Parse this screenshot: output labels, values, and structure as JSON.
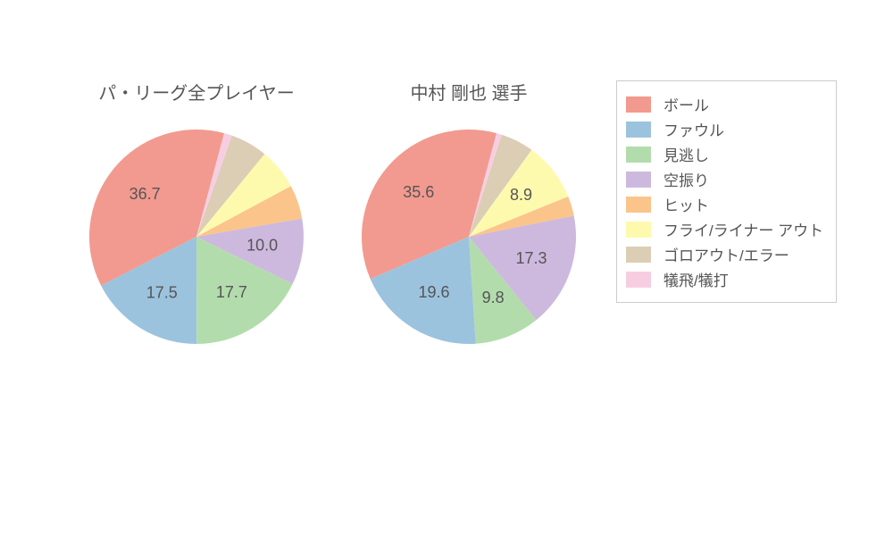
{
  "palette": {
    "ball": "#f29a8f",
    "foul": "#9cc3dd",
    "look": "#b3dcad",
    "swing": "#cdb9de",
    "hit": "#fbc48b",
    "fly_out": "#fdfaae",
    "ground_out": "#dccdb5",
    "sac": "#f7cee1"
  },
  "legend": [
    {
      "key": "ball",
      "label": "ボール"
    },
    {
      "key": "foul",
      "label": "ファウル"
    },
    {
      "key": "look",
      "label": "見逃し"
    },
    {
      "key": "swing",
      "label": "空振り"
    },
    {
      "key": "hit",
      "label": "ヒット"
    },
    {
      "key": "fly_out",
      "label": "フライ/ライナー アウト"
    },
    {
      "key": "ground_out",
      "label": "ゴロアウト/エラー"
    },
    {
      "key": "sac",
      "label": "犠飛/犠打"
    }
  ],
  "charts": {
    "common": {
      "radius": 120,
      "label_fontsize": 18,
      "label_color": "#555555",
      "label_min_pct": 8.0,
      "start_angle_deg": 75
    },
    "left": {
      "title": "パ・リーグ全プレイヤー",
      "slices": [
        {
          "key": "ball",
          "value": 36.7,
          "label": "36.7"
        },
        {
          "key": "foul",
          "value": 17.5,
          "label": "17.5"
        },
        {
          "key": "look",
          "value": 17.7,
          "label": "17.7"
        },
        {
          "key": "swing",
          "value": 10.0,
          "label": "10.0"
        },
        {
          "key": "hit",
          "value": 5.1,
          "label": ""
        },
        {
          "key": "fly_out",
          "value": 6.2,
          "label": ""
        },
        {
          "key": "ground_out",
          "value": 5.6,
          "label": ""
        },
        {
          "key": "sac",
          "value": 1.2,
          "label": ""
        }
      ]
    },
    "right": {
      "title": "中村 剛也  選手",
      "slices": [
        {
          "key": "ball",
          "value": 35.6,
          "label": "35.6"
        },
        {
          "key": "foul",
          "value": 19.6,
          "label": "19.6"
        },
        {
          "key": "look",
          "value": 9.8,
          "label": "9.8"
        },
        {
          "key": "swing",
          "value": 17.3,
          "label": "17.3"
        },
        {
          "key": "hit",
          "value": 3.0,
          "label": ""
        },
        {
          "key": "fly_out",
          "value": 8.9,
          "label": "8.9"
        },
        {
          "key": "ground_out",
          "value": 5.0,
          "label": ""
        },
        {
          "key": "sac",
          "value": 0.8,
          "label": ""
        }
      ]
    }
  }
}
